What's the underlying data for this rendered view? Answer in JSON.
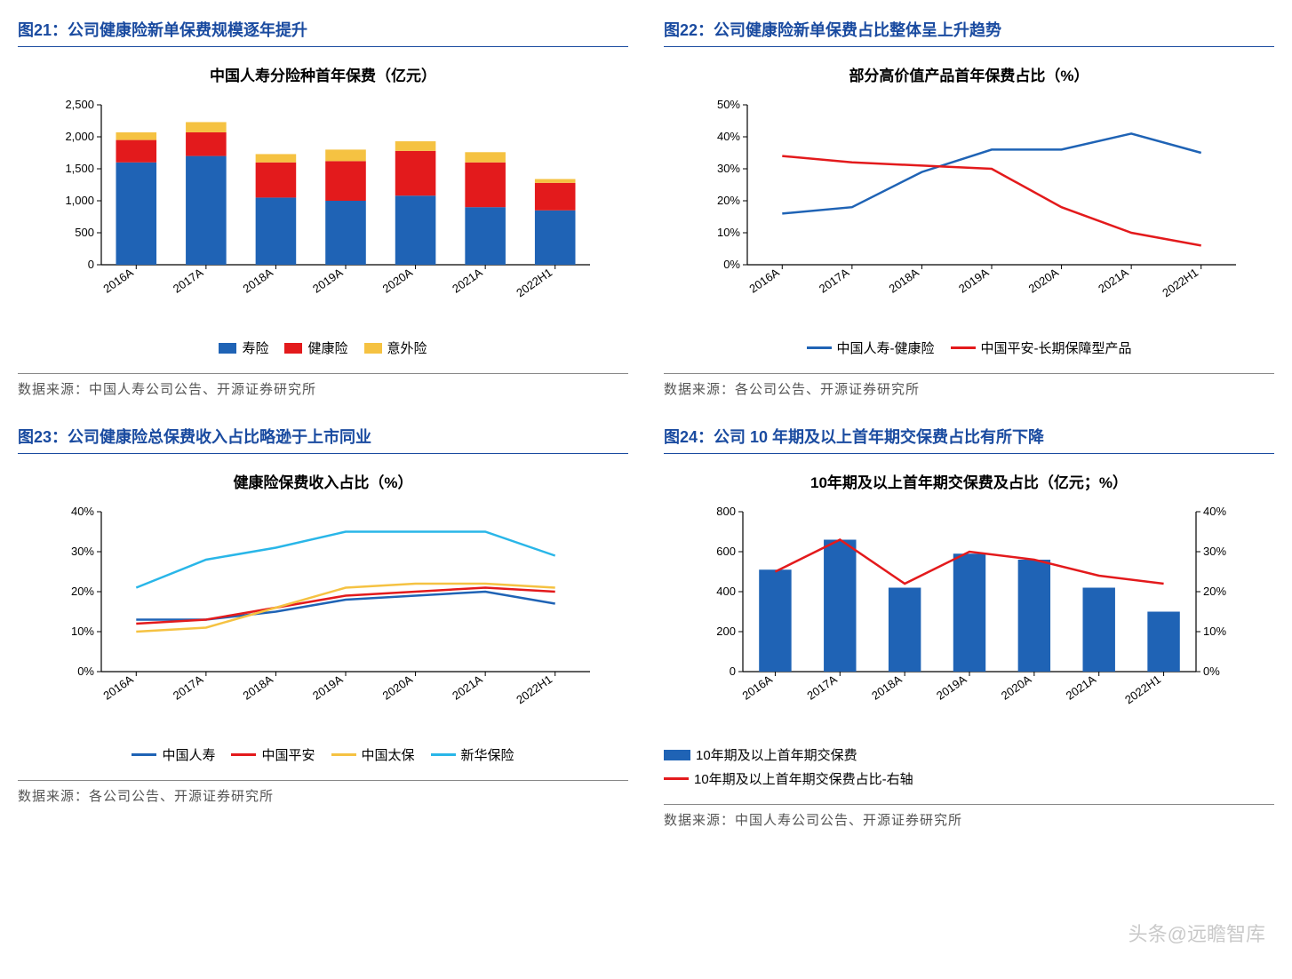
{
  "watermark": "头条@远瞻智库",
  "colors": {
    "header_blue": "#1a4ba0",
    "bar_blue": "#1f63b5",
    "red": "#e31a1c",
    "yellow": "#f5c242",
    "cyan": "#29b6e8",
    "grid": "#bfbfbf",
    "axis": "#000000"
  },
  "chart21": {
    "header": "图21：公司健康险新单保费规模逐年提升",
    "title": "中国人寿分险种首年保费（亿元）",
    "type": "stacked-bar",
    "categories": [
      "2016A",
      "2017A",
      "2018A",
      "2019A",
      "2020A",
      "2021A",
      "2022H1"
    ],
    "series": [
      {
        "name": "寿险",
        "color": "#1f63b5",
        "values": [
          1600,
          1700,
          1050,
          1000,
          1080,
          900,
          850
        ]
      },
      {
        "name": "健康险",
        "color": "#e31a1c",
        "values": [
          350,
          370,
          550,
          620,
          700,
          700,
          430
        ]
      },
      {
        "name": "意外险",
        "color": "#f5c242",
        "values": [
          120,
          160,
          130,
          180,
          150,
          160,
          60
        ]
      }
    ],
    "ylim": [
      0,
      2500
    ],
    "ytick_step": 500,
    "bar_width": 0.58,
    "source": "数据来源：中国人寿公司公告、开源证券研究所"
  },
  "chart22": {
    "header": "图22：公司健康险新单保费占比整体呈上升趋势",
    "title": "部分高价值产品首年保费占比（%）",
    "type": "line",
    "categories": [
      "2016A",
      "2017A",
      "2018A",
      "2019A",
      "2020A",
      "2021A",
      "2022H1"
    ],
    "series": [
      {
        "name": "中国人寿-健康险",
        "color": "#1f63b5",
        "values": [
          16,
          18,
          29,
          36,
          36,
          41,
          35
        ]
      },
      {
        "name": "中国平安-长期保障型产品",
        "color": "#e31a1c",
        "values": [
          34,
          32,
          31,
          30,
          18,
          10,
          6
        ]
      }
    ],
    "ylim": [
      0,
      50
    ],
    "ytick_step": 10,
    "ysuffix": "%",
    "source": "数据来源：各公司公告、开源证券研究所"
  },
  "chart23": {
    "header": "图23：公司健康险总保费收入占比略逊于上市同业",
    "title": "健康险保费收入占比（%）",
    "type": "line",
    "categories": [
      "2016A",
      "2017A",
      "2018A",
      "2019A",
      "2020A",
      "2021A",
      "2022H1"
    ],
    "series": [
      {
        "name": "中国人寿",
        "color": "#1f63b5",
        "values": [
          13,
          13,
          15,
          18,
          19,
          20,
          17
        ]
      },
      {
        "name": "中国平安",
        "color": "#e31a1c",
        "values": [
          12,
          13,
          16,
          19,
          20,
          21,
          20
        ]
      },
      {
        "name": "中国太保",
        "color": "#f5c242",
        "values": [
          10,
          11,
          16,
          21,
          22,
          22,
          21
        ]
      },
      {
        "name": "新华保险",
        "color": "#29b6e8",
        "values": [
          21,
          28,
          31,
          35,
          35,
          35,
          29
        ]
      }
    ],
    "ylim": [
      0,
      40
    ],
    "ytick_step": 10,
    "ysuffix": "%",
    "source": "数据来源：各公司公告、开源证券研究所"
  },
  "chart24": {
    "header": "图24：公司 10 年期及以上首年期交保费占比有所下降",
    "title": "10年期及以上首年期交保费及占比（亿元；%）",
    "type": "bar-line",
    "categories": [
      "2016A",
      "2017A",
      "2018A",
      "2019A",
      "2020A",
      "2021A",
      "2022H1"
    ],
    "bar_series": {
      "name": "10年期及以上首年期交保费",
      "color": "#1f63b5",
      "values": [
        510,
        660,
        420,
        590,
        560,
        420,
        300
      ]
    },
    "line_series": {
      "name": "10年期及以上首年期交保费占比-右轴",
      "color": "#e31a1c",
      "values": [
        25,
        33,
        22,
        30,
        28,
        24,
        22
      ]
    },
    "ylim_left": [
      0,
      800
    ],
    "ytick_left": 200,
    "ylim_right": [
      0,
      40
    ],
    "ytick_right": 10,
    "ysuffix_right": "%",
    "bar_width": 0.5,
    "source": "数据来源：中国人寿公司公告、开源证券研究所"
  }
}
